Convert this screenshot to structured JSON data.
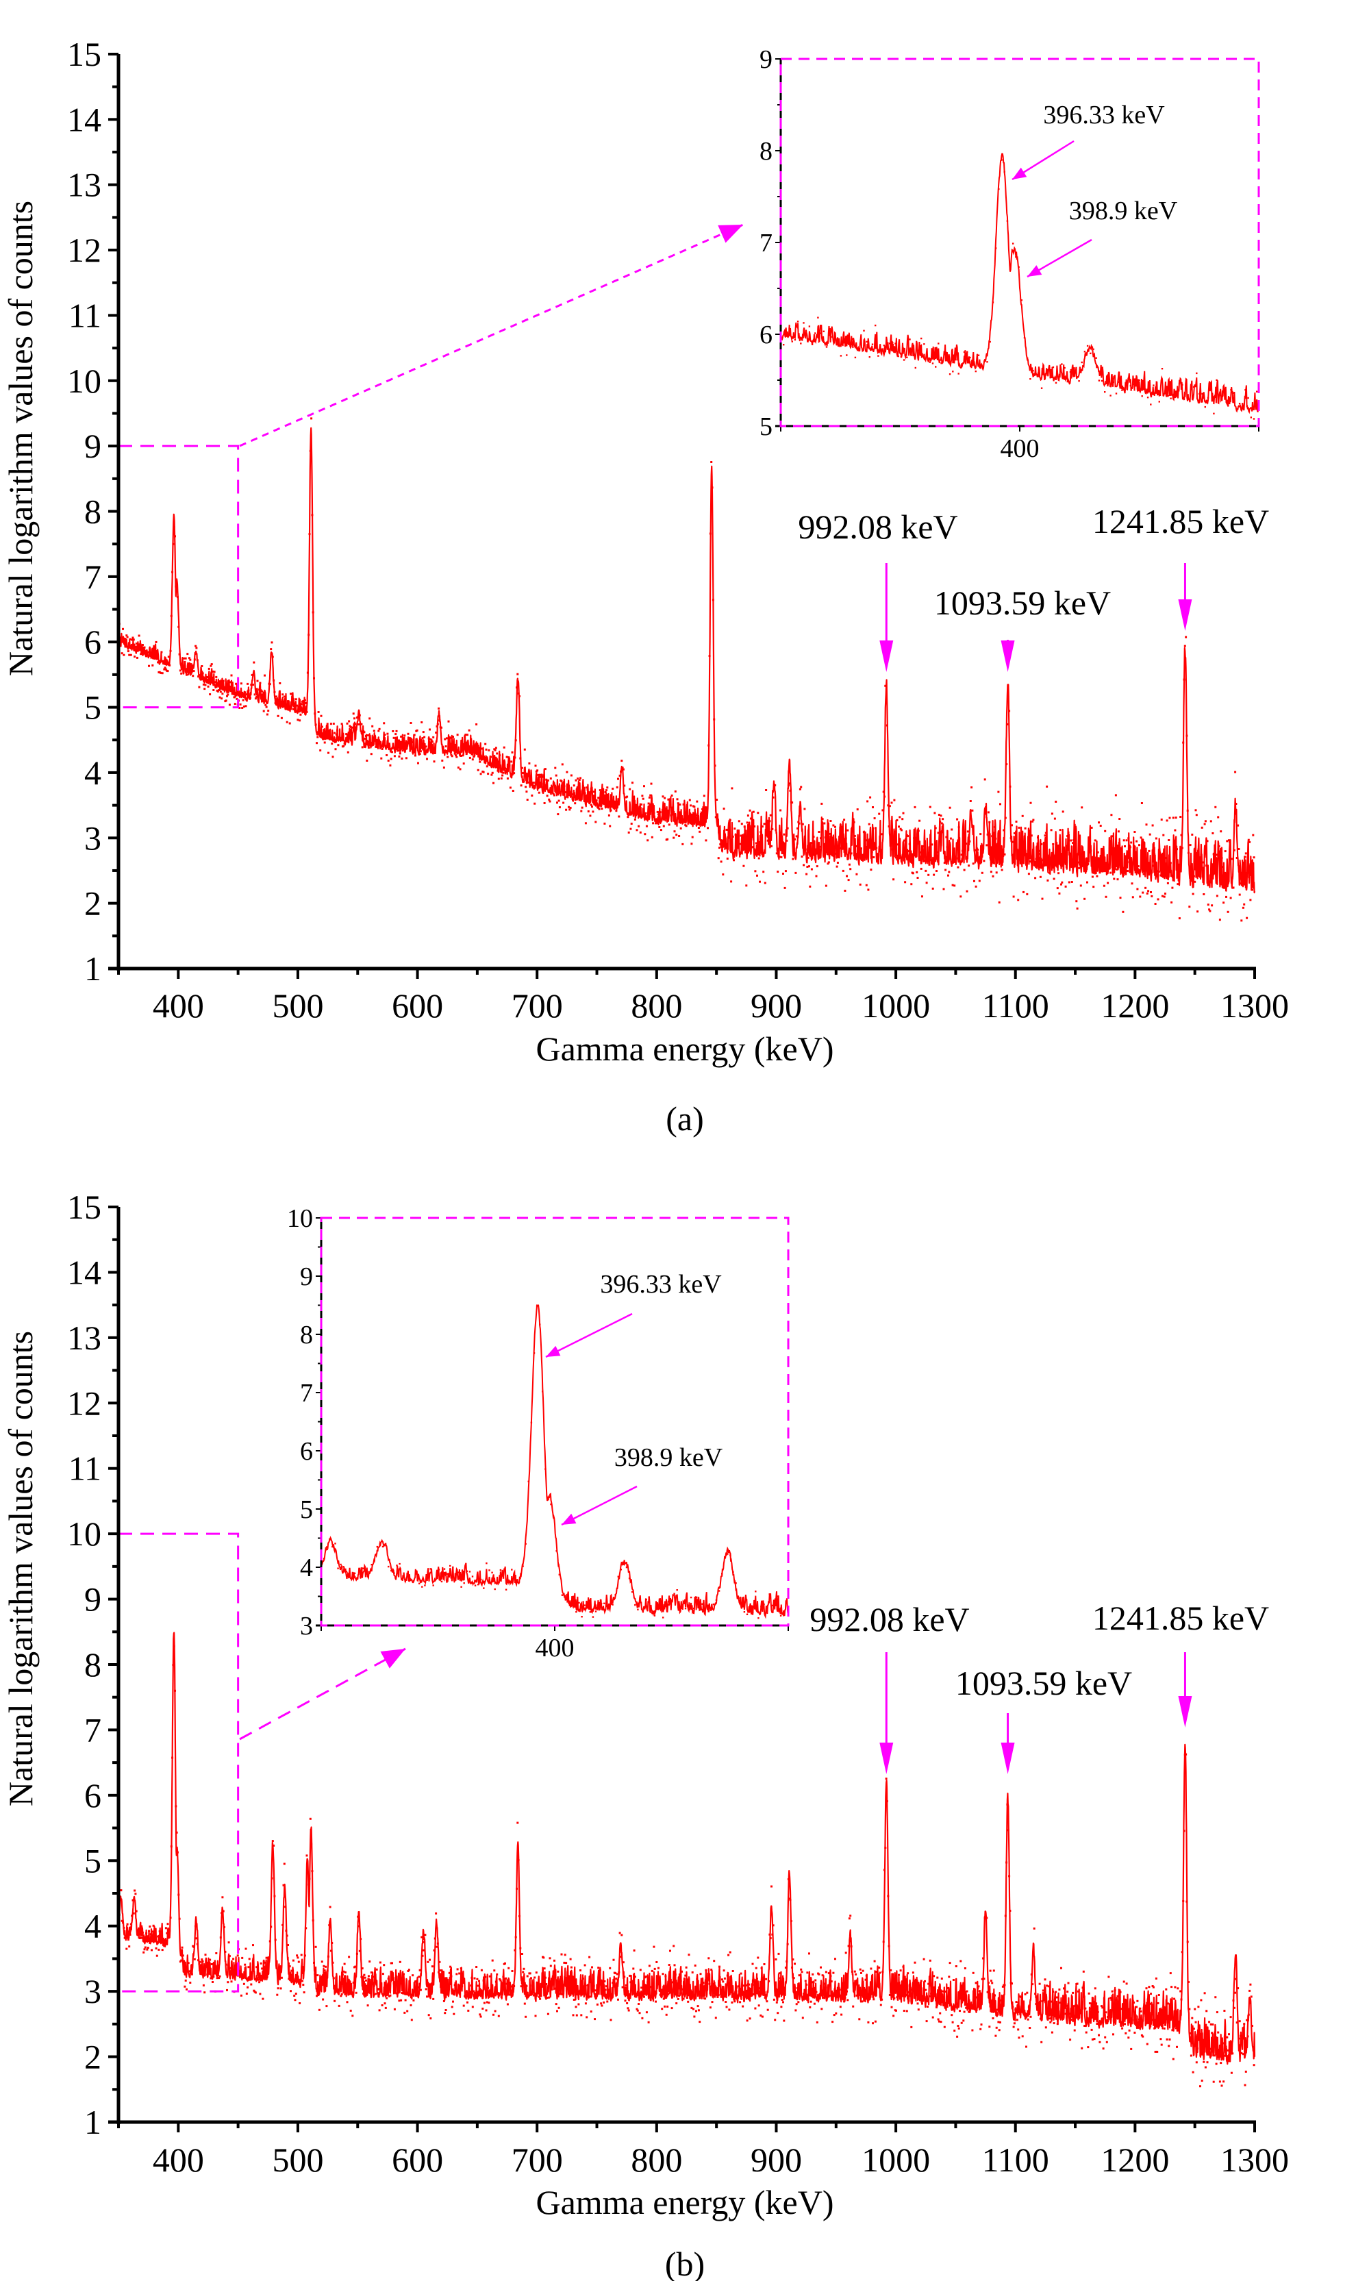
{
  "chart_data": [
    {
      "type": "line",
      "panel": "(a)",
      "caption": "(a)",
      "xlabel": "Gamma energy (keV)",
      "ylabel": "Natural logarithm values of counts",
      "xlim": [
        350,
        1300
      ],
      "ylim": [
        1,
        15
      ],
      "xticks": [
        "400",
        "500",
        "600",
        "700",
        "800",
        "900",
        "1000",
        "1100",
        "1200",
        "1300"
      ],
      "yticks": [
        "1",
        "2",
        "3",
        "4",
        "5",
        "6",
        "7",
        "8",
        "9",
        "10",
        "11",
        "12",
        "13",
        "14",
        "15"
      ],
      "series_color": "#ff0000",
      "accent_color": "#ff00ff",
      "baseline": [
        [
          350,
          6.0
        ],
        [
          400,
          5.6
        ],
        [
          450,
          5.2
        ],
        [
          505,
          4.95
        ],
        [
          520,
          4.55
        ],
        [
          600,
          4.35
        ],
        [
          640,
          4.35
        ],
        [
          700,
          3.8
        ],
        [
          800,
          3.3
        ],
        [
          850,
          3.25
        ],
        [
          855,
          2.85
        ],
        [
          1000,
          2.75
        ],
        [
          1200,
          2.55
        ],
        [
          1300,
          2.3
        ]
      ],
      "noise": [
        [
          350,
          0.15
        ],
        [
          500,
          0.2
        ],
        [
          700,
          0.25
        ],
        [
          850,
          0.3
        ],
        [
          860,
          0.45
        ],
        [
          1300,
          0.55
        ]
      ],
      "peaks": [
        {
          "energy": 396.33,
          "value": 7.93
        },
        {
          "energy": 398.9,
          "value": 6.95
        },
        {
          "energy": 414.7,
          "value": 5.85
        },
        {
          "energy": 463,
          "value": 5.5
        },
        {
          "energy": 478,
          "value": 5.85
        },
        {
          "energy": 511,
          "value": 9.3
        },
        {
          "energy": 551,
          "value": 4.9
        },
        {
          "energy": 618,
          "value": 4.9
        },
        {
          "energy": 684,
          "value": 5.45
        },
        {
          "energy": 771,
          "value": 4.05
        },
        {
          "energy": 846,
          "value": 8.65
        },
        {
          "energy": 898,
          "value": 3.9
        },
        {
          "energy": 911,
          "value": 4.15
        },
        {
          "energy": 920,
          "value": 3.5
        },
        {
          "energy": 992.08,
          "value": 5.35
        },
        {
          "energy": 1063,
          "value": 3.4
        },
        {
          "energy": 1075,
          "value": 3.5
        },
        {
          "energy": 1093.59,
          "value": 5.4
        },
        {
          "energy": 1241.85,
          "value": 5.95
        },
        {
          "energy": 1284,
          "value": 3.5
        }
      ],
      "zoom_region": {
        "x": [
          350,
          450
        ],
        "y": [
          5,
          9
        ]
      },
      "annotations": [
        {
          "text": "992.08 keV",
          "energy": 992.08
        },
        {
          "text": "1093.59 keV",
          "energy": 1093.59
        },
        {
          "text": "1241.85 keV",
          "energy": 1241.85
        }
      ],
      "inset": {
        "xlim": [
          350,
          450
        ],
        "ylim": [
          5,
          9
        ],
        "xticks": [
          "400"
        ],
        "yticks": [
          "5",
          "6",
          "7",
          "8",
          "9"
        ],
        "annotations": [
          {
            "text": "396.33 keV",
            "energy": 396.33
          },
          {
            "text": "398.9 keV",
            "energy": 398.9
          }
        ]
      }
    },
    {
      "type": "line",
      "panel": "(b)",
      "caption": "(b)",
      "xlabel": "Gamma energy (keV)",
      "ylabel": "Natural logarithm values of counts",
      "xlim": [
        350,
        1300
      ],
      "ylim": [
        1,
        15
      ],
      "xticks": [
        "400",
        "500",
        "600",
        "700",
        "800",
        "900",
        "1000",
        "1100",
        "1200",
        "1300"
      ],
      "yticks": [
        "1",
        "2",
        "3",
        "4",
        "5",
        "6",
        "7",
        "8",
        "9",
        "10",
        "11",
        "12",
        "13",
        "14",
        "15"
      ],
      "series_color": "#ff0000",
      "accent_color": "#ff00ff",
      "baseline": [
        [
          350,
          3.85
        ],
        [
          394,
          3.75
        ],
        [
          405,
          3.3
        ],
        [
          500,
          3.2
        ],
        [
          520,
          3.0
        ],
        [
          1000,
          2.95
        ],
        [
          1100,
          2.7
        ],
        [
          1240,
          2.5
        ],
        [
          1250,
          2.1
        ],
        [
          1300,
          2.0
        ]
      ],
      "noise": [
        [
          350,
          0.18
        ],
        [
          500,
          0.3
        ],
        [
          1000,
          0.35
        ],
        [
          1300,
          0.45
        ]
      ],
      "peaks": [
        {
          "energy": 352,
          "value": 4.45
        },
        {
          "energy": 363,
          "value": 4.45
        },
        {
          "energy": 396.33,
          "value": 8.5
        },
        {
          "energy": 398.9,
          "value": 5.2
        },
        {
          "energy": 415,
          "value": 4.1
        },
        {
          "energy": 437,
          "value": 4.25
        },
        {
          "energy": 479,
          "value": 5.25
        },
        {
          "energy": 489,
          "value": 4.6
        },
        {
          "energy": 508,
          "value": 5.0
        },
        {
          "energy": 511,
          "value": 5.55
        },
        {
          "energy": 527,
          "value": 4.05
        },
        {
          "energy": 551,
          "value": 4.25
        },
        {
          "energy": 605,
          "value": 3.95
        },
        {
          "energy": 616,
          "value": 4.1
        },
        {
          "energy": 684,
          "value": 5.2
        },
        {
          "energy": 770,
          "value": 3.75
        },
        {
          "energy": 896,
          "value": 4.3
        },
        {
          "energy": 911,
          "value": 4.85
        },
        {
          "energy": 962,
          "value": 3.8
        },
        {
          "energy": 992.08,
          "value": 6.2
        },
        {
          "energy": 1075,
          "value": 4.3
        },
        {
          "energy": 1093.59,
          "value": 5.95
        },
        {
          "energy": 1115,
          "value": 3.6
        },
        {
          "energy": 1241.85,
          "value": 6.8
        },
        {
          "energy": 1284,
          "value": 3.65
        },
        {
          "energy": 1296,
          "value": 2.9
        }
      ],
      "zoom_region": {
        "x": [
          350,
          450
        ],
        "y": [
          3,
          10
        ]
      },
      "annotations": [
        {
          "text": "992.08 keV",
          "energy": 992.08
        },
        {
          "text": "1093.59 keV",
          "energy": 1093.59
        },
        {
          "text": "1241.85 keV",
          "energy": 1241.85
        }
      ],
      "inset": {
        "xlim": [
          350,
          450
        ],
        "ylim": [
          3,
          10
        ],
        "xticks": [
          "400"
        ],
        "yticks": [
          "3",
          "4",
          "5",
          "6",
          "7",
          "8",
          "9",
          "10"
        ],
        "annotations": [
          {
            "text": "396.33 keV",
            "energy": 396.33
          },
          {
            "text": "398.9 keV",
            "energy": 398.9
          }
        ]
      }
    }
  ]
}
